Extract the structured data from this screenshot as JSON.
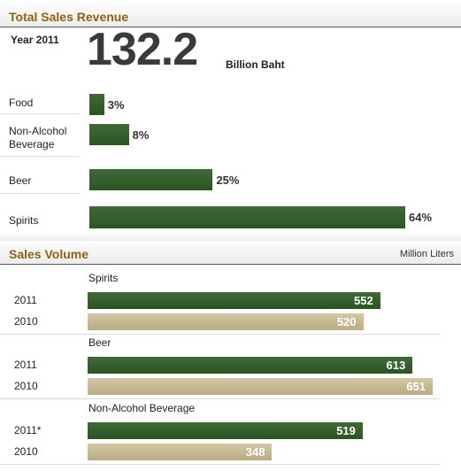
{
  "revenue": {
    "title": "Total Sales Revenue",
    "year_label": "Year 2011",
    "total": "132.2",
    "unit": "Billion Baht"
  },
  "volume": {
    "title": "Sales Volume",
    "unit": "Million Liters"
  },
  "colors": {
    "bar_2011": "#2f5a27",
    "bar_2010": "#c4b891",
    "section_title": "#8a6410"
  },
  "chart_data": [
    {
      "type": "bar",
      "title": "Total Sales Revenue",
      "categories": [
        "Food",
        "Non-Alcohol Beverage",
        "Beer",
        "Spirits"
      ],
      "category_labels": [
        "Food",
        "Non-Alcohol\nBeverage",
        "Beer",
        "Spirits"
      ],
      "values": [
        3,
        8,
        25,
        64
      ],
      "value_labels": [
        "3%",
        "8%",
        "25%",
        "64%"
      ],
      "orientation": "horizontal",
      "xlim": [
        0,
        64
      ]
    },
    {
      "type": "bar",
      "title": "Sales Volume",
      "unit": "Million Liters",
      "orientation": "horizontal",
      "groups": [
        {
          "name": "Spirits",
          "rows": [
            {
              "year": "2011",
              "value": 552
            },
            {
              "year": "2010",
              "value": 520
            }
          ]
        },
        {
          "name": "Beer",
          "rows": [
            {
              "year": "2011",
              "value": 613
            },
            {
              "year": "2010",
              "value": 651
            }
          ]
        },
        {
          "name": "Non-Alcohol Beverage",
          "rows": [
            {
              "year": "2011*",
              "value": 519
            },
            {
              "year": "2010",
              "value": 348
            }
          ]
        }
      ],
      "xlim": [
        0,
        651
      ]
    }
  ]
}
